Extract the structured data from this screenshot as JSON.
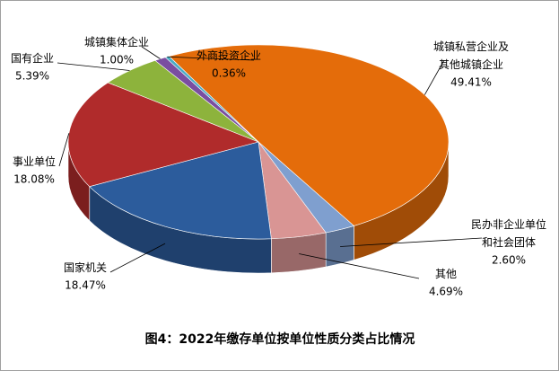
{
  "chart_data": {
    "type": "pie3d",
    "title": "图4：2022年缴存单位按单位性质分类占比情况",
    "categories": [
      "城镇私营企业及其他城镇企业",
      "民办非企业单位和社会团体",
      "其他",
      "国家机关",
      "事业单位",
      "国有企业",
      "城镇集体企业",
      "外商投资企业"
    ],
    "values": [
      49.41,
      2.6,
      4.69,
      18.47,
      18.08,
      5.39,
      1.0,
      0.36
    ],
    "value_labels": [
      "49.41%",
      "2.60%",
      "4.69%",
      "18.47%",
      "18.08%",
      "5.39%",
      "1.00%",
      "0.36%"
    ],
    "colors": [
      "#e46c0a",
      "#7f9fcf",
      "#d99594",
      "#2c5c9c",
      "#b02b2b",
      "#8db33c",
      "#7a4ea0",
      "#4bacc6"
    ]
  }
}
